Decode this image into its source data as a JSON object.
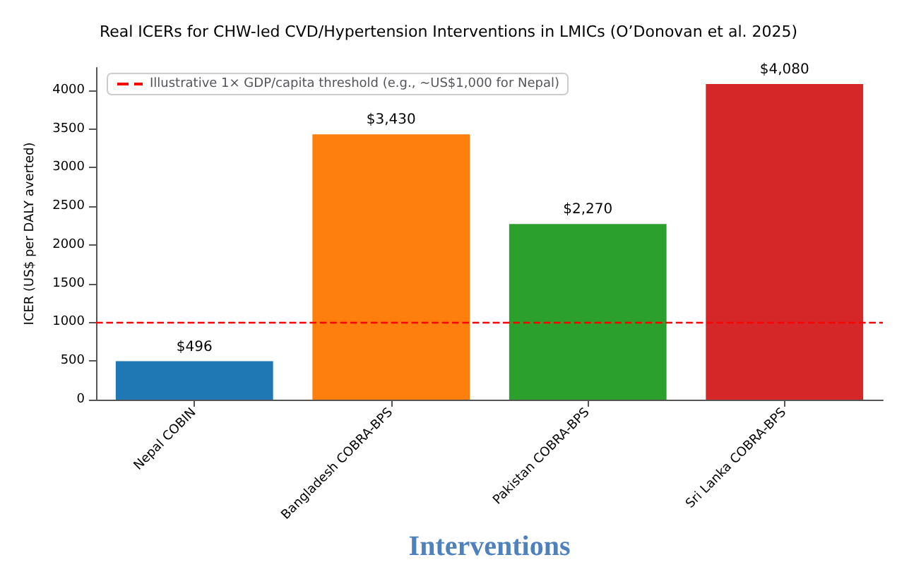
{
  "chart_data": {
    "type": "bar",
    "title": "Real ICERs for CHW-led CVD/Hypertension Interventions in LMICs (O’Donovan et al. 2025)",
    "xlabel": "Interventions",
    "ylabel": "ICER (US$ per DALY averted)",
    "categories": [
      "Nepal COBIN",
      "Bangladesh COBRA-BPS",
      "Pakistan COBRA-BPS",
      "Sri Lanka COBRA-BPS"
    ],
    "values": [
      496,
      3430,
      2270,
      4080
    ],
    "colors": [
      "#1f77b4",
      "#ff7f0e",
      "#2ca02c",
      "#d62728"
    ],
    "value_labels": [
      "$496",
      "$3,430",
      "$2,270",
      "$4,080"
    ],
    "ylim": [
      0,
      4290
    ],
    "yticks": [
      0,
      500,
      1000,
      1500,
      2000,
      2500,
      3000,
      3500,
      4000
    ],
    "ref_lines": [
      {
        "axis": "y",
        "value": 1000,
        "label": "Illustrative 1× GDP/capita threshold (e.g., ~US$1,000 for Nepal)",
        "color": "#ff0000",
        "line_style": "dashed"
      }
    ],
    "legend": "top left",
    "grid": false
  }
}
